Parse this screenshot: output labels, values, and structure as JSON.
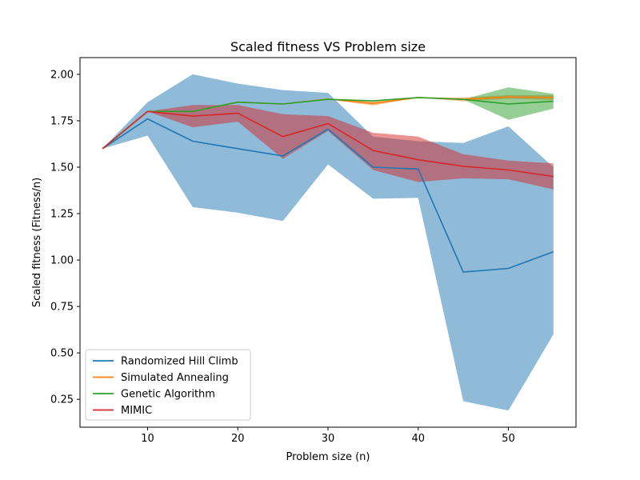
{
  "chart_data": {
    "type": "line",
    "title": "Scaled fitness VS Problem size",
    "xlabel": "Problem size (n)",
    "ylabel": "Scaled fitness (Fitness/n)",
    "xlim": [
      2.5,
      57.5
    ],
    "ylim": [
      0.1,
      2.09
    ],
    "xticks": [
      10,
      20,
      30,
      40,
      50
    ],
    "yticks": [
      0.25,
      0.5,
      0.75,
      1.0,
      1.25,
      1.5,
      1.75,
      2.0
    ],
    "ytick_labels": [
      "0.25",
      "0.50",
      "0.75",
      "1.00",
      "1.25",
      "1.50",
      "1.75",
      "2.00"
    ],
    "grid": false,
    "legend_position": "lower-left",
    "x": [
      5,
      10,
      15,
      20,
      25,
      30,
      35,
      40,
      45,
      50,
      55
    ],
    "series": [
      {
        "name": "Randomized Hill Climb",
        "color": "#1f77b4",
        "values": [
          1.6,
          1.76,
          1.64,
          1.6,
          1.56,
          1.705,
          1.5,
          1.49,
          0.935,
          0.955,
          1.045
        ],
        "lower": [
          1.6,
          1.67,
          1.285,
          1.255,
          1.21,
          1.515,
          1.33,
          1.335,
          0.24,
          0.19,
          0.6
        ],
        "upper": [
          1.6,
          1.85,
          2.0,
          1.95,
          1.915,
          1.9,
          1.665,
          1.64,
          1.63,
          1.72,
          1.5
        ]
      },
      {
        "name": "Simulated Annealing",
        "color": "#ff7f0e",
        "values": [
          1.6,
          1.8,
          1.8,
          1.85,
          1.84,
          1.867,
          1.843,
          1.875,
          1.865,
          1.878,
          1.875
        ],
        "lower": [
          1.6,
          1.8,
          1.8,
          1.85,
          1.84,
          1.865,
          1.833,
          1.875,
          1.855,
          1.868,
          1.862
        ],
        "upper": [
          1.6,
          1.8,
          1.8,
          1.85,
          1.84,
          1.869,
          1.853,
          1.875,
          1.875,
          1.888,
          1.888
        ]
      },
      {
        "name": "Genetic Algorithm",
        "color": "#2ca02c",
        "values": [
          1.6,
          1.8,
          1.8,
          1.85,
          1.84,
          1.865,
          1.857,
          1.875,
          1.865,
          1.84,
          1.855
        ],
        "lower": [
          1.6,
          1.8,
          1.8,
          1.85,
          1.84,
          1.865,
          1.857,
          1.875,
          1.865,
          1.755,
          1.815
        ],
        "upper": [
          1.6,
          1.8,
          1.8,
          1.85,
          1.84,
          1.865,
          1.857,
          1.875,
          1.865,
          1.93,
          1.895
        ]
      },
      {
        "name": "MIMIC",
        "color": "#d62728",
        "values": [
          1.6,
          1.8,
          1.775,
          1.79,
          1.665,
          1.735,
          1.59,
          1.54,
          1.505,
          1.485,
          1.45
        ],
        "lower": [
          1.6,
          1.8,
          1.715,
          1.745,
          1.545,
          1.695,
          1.485,
          1.42,
          1.44,
          1.435,
          1.38
        ],
        "upper": [
          1.6,
          1.8,
          1.835,
          1.835,
          1.785,
          1.775,
          1.685,
          1.665,
          1.57,
          1.535,
          1.52
        ]
      }
    ]
  }
}
